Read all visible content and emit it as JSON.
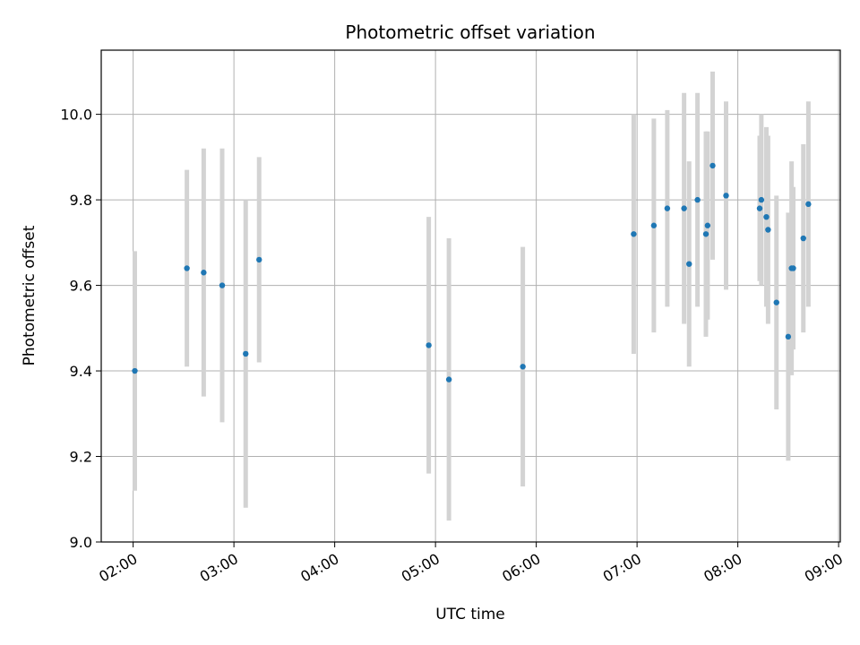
{
  "chart_data": {
    "type": "scatter",
    "title": "Photometric offset variation",
    "xlabel": "UTC time",
    "ylabel": "Photometric offset",
    "x_axis_kind": "time",
    "xlim": [
      "01:41",
      "09:01"
    ],
    "ylim": [
      9.0,
      10.15
    ],
    "xticks": [
      "02:00",
      "03:00",
      "04:00",
      "05:00",
      "06:00",
      "07:00",
      "08:00",
      "09:00"
    ],
    "yticks": [
      "9.0",
      "9.2",
      "9.4",
      "9.6",
      "9.8",
      "10.0"
    ],
    "grid": true,
    "legend": "none",
    "marker_color": "#1f77b4",
    "errorbar_color": "#d3d3d3",
    "points": [
      {
        "x": "02:01",
        "y": 9.4,
        "yerr": 0.28
      },
      {
        "x": "02:32",
        "y": 9.64,
        "yerr": 0.23
      },
      {
        "x": "02:42",
        "y": 9.63,
        "yerr": 0.29
      },
      {
        "x": "02:53",
        "y": 9.6,
        "yerr": 0.32
      },
      {
        "x": "03:07",
        "y": 9.44,
        "yerr": 0.36
      },
      {
        "x": "03:15",
        "y": 9.66,
        "yerr": 0.24
      },
      {
        "x": "04:56",
        "y": 9.46,
        "yerr": 0.3
      },
      {
        "x": "05:08",
        "y": 9.38,
        "yerr": 0.33
      },
      {
        "x": "05:52",
        "y": 9.41,
        "yerr": 0.28
      },
      {
        "x": "06:58",
        "y": 9.72,
        "yerr": 0.28
      },
      {
        "x": "07:10",
        "y": 9.74,
        "yerr": 0.25
      },
      {
        "x": "07:18",
        "y": 9.78,
        "yerr": 0.23
      },
      {
        "x": "07:28",
        "y": 9.78,
        "yerr": 0.27
      },
      {
        "x": "07:31",
        "y": 9.65,
        "yerr": 0.24
      },
      {
        "x": "07:36",
        "y": 9.8,
        "yerr": 0.25
      },
      {
        "x": "07:41",
        "y": 9.72,
        "yerr": 0.24
      },
      {
        "x": "07:42",
        "y": 9.74,
        "yerr": 0.22
      },
      {
        "x": "07:45",
        "y": 9.88,
        "yerr": 0.22
      },
      {
        "x": "07:53",
        "y": 9.81,
        "yerr": 0.22
      },
      {
        "x": "08:13",
        "y": 9.78,
        "yerr": 0.17
      },
      {
        "x": "08:14",
        "y": 9.8,
        "yerr": 0.2
      },
      {
        "x": "08:17",
        "y": 9.76,
        "yerr": 0.21
      },
      {
        "x": "08:18",
        "y": 9.73,
        "yerr": 0.22
      },
      {
        "x": "08:23",
        "y": 9.56,
        "yerr": 0.25
      },
      {
        "x": "08:30",
        "y": 9.48,
        "yerr": 0.29
      },
      {
        "x": "08:32",
        "y": 9.64,
        "yerr": 0.25
      },
      {
        "x": "08:33",
        "y": 9.64,
        "yerr": 0.19
      },
      {
        "x": "08:39",
        "y": 9.71,
        "yerr": 0.22
      },
      {
        "x": "08:42",
        "y": 9.79,
        "yerr": 0.24
      }
    ]
  }
}
